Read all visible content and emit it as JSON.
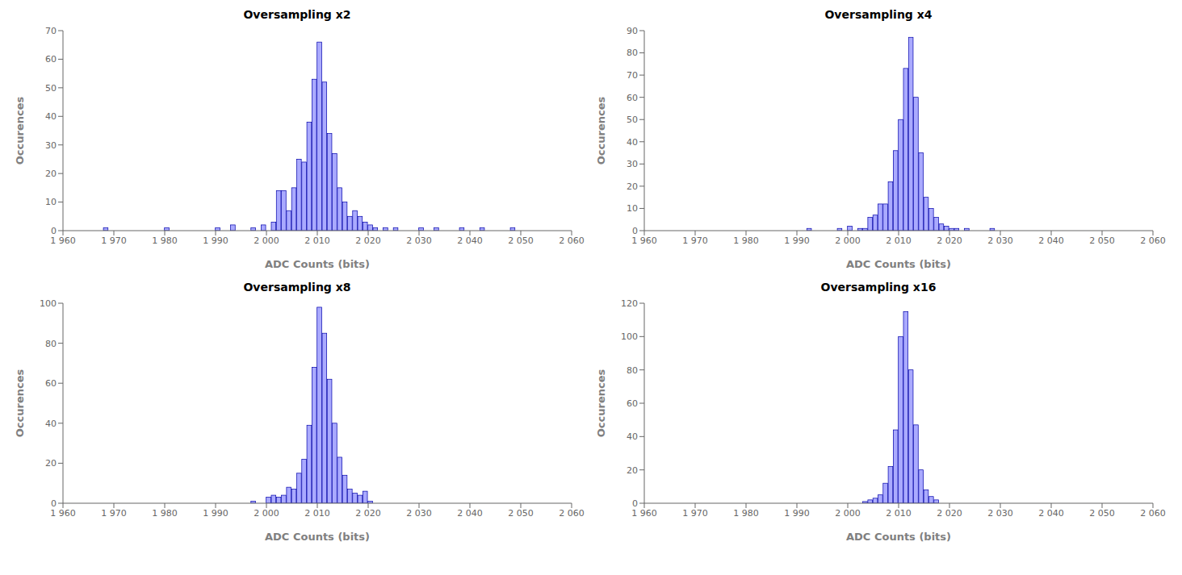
{
  "chart_data": [
    {
      "type": "bar",
      "title": "Oversampling x2",
      "xlabel": "ADC Counts (bits)",
      "ylabel": "Occurences",
      "color": "#aaaaff",
      "grid": false,
      "xlim": [
        1960,
        2060
      ],
      "xticks": [
        {
          "value": 1960,
          "label": "1 960"
        },
        {
          "value": 1970,
          "label": "1 970"
        },
        {
          "value": 1980,
          "label": "1 980"
        },
        {
          "value": 1990,
          "label": "1 990"
        },
        {
          "value": 2000,
          "label": "2 000"
        },
        {
          "value": 2010,
          "label": "2 010"
        },
        {
          "value": 2020,
          "label": "2 020"
        },
        {
          "value": 2030,
          "label": "2 030"
        },
        {
          "value": 2040,
          "label": "2 040"
        },
        {
          "value": 2050,
          "label": "2 050"
        },
        {
          "value": 2060,
          "label": "2 060"
        }
      ],
      "ylim": [
        0,
        70
      ],
      "yticks": [
        0,
        10,
        20,
        30,
        40,
        50,
        60,
        70
      ],
      "x": [
        1968,
        1980,
        1990,
        1993,
        1997,
        1999,
        2001,
        2002,
        2003,
        2004,
        2005,
        2006,
        2007,
        2008,
        2009,
        2010,
        2011,
        2012,
        2013,
        2014,
        2015,
        2016,
        2017,
        2018,
        2019,
        2020,
        2021,
        2023,
        2025,
        2030,
        2033,
        2038,
        2042,
        2048
      ],
      "values": [
        1,
        1,
        1,
        2,
        1,
        2,
        3,
        14,
        14,
        7,
        15,
        25,
        24,
        38,
        53,
        66,
        52,
        34,
        27,
        15,
        10,
        5,
        7,
        5,
        3,
        2,
        1,
        1,
        1,
        1,
        1,
        1,
        1,
        1
      ]
    },
    {
      "type": "bar",
      "title": "Oversampling x4",
      "xlabel": "ADC Counts (bits)",
      "ylabel": "Occurences",
      "color": "#aaaaff",
      "grid": false,
      "xlim": [
        1960,
        2060
      ],
      "xticks": [
        {
          "value": 1960,
          "label": "1 960"
        },
        {
          "value": 1970,
          "label": "1 970"
        },
        {
          "value": 1980,
          "label": "1 980"
        },
        {
          "value": 1990,
          "label": "1 990"
        },
        {
          "value": 2000,
          "label": "2 000"
        },
        {
          "value": 2010,
          "label": "2 010"
        },
        {
          "value": 2020,
          "label": "2 020"
        },
        {
          "value": 2030,
          "label": "2 030"
        },
        {
          "value": 2040,
          "label": "2 040"
        },
        {
          "value": 2050,
          "label": "2 050"
        },
        {
          "value": 2060,
          "label": "2 060"
        }
      ],
      "ylim": [
        0,
        90
      ],
      "yticks": [
        0,
        10,
        20,
        30,
        40,
        50,
        60,
        70,
        80,
        90
      ],
      "x": [
        1992,
        1998,
        2000,
        2002,
        2003,
        2004,
        2005,
        2006,
        2007,
        2008,
        2009,
        2010,
        2011,
        2012,
        2013,
        2014,
        2015,
        2016,
        2017,
        2018,
        2019,
        2020,
        2021,
        2023,
        2028
      ],
      "values": [
        1,
        1,
        2,
        1,
        1,
        6,
        7,
        12,
        12,
        22,
        36,
        50,
        73,
        87,
        60,
        35,
        15,
        10,
        6,
        3,
        2,
        1,
        1,
        1,
        1
      ]
    },
    {
      "type": "bar",
      "title": "Oversampling x8",
      "xlabel": "ADC Counts (bits)",
      "ylabel": "Occurences",
      "color": "#aaaaff",
      "grid": false,
      "xlim": [
        1960,
        2060
      ],
      "xticks": [
        {
          "value": 1960,
          "label": "1 960"
        },
        {
          "value": 1970,
          "label": "1 970"
        },
        {
          "value": 1980,
          "label": "1 980"
        },
        {
          "value": 1990,
          "label": "1 990"
        },
        {
          "value": 2000,
          "label": "2 000"
        },
        {
          "value": 2010,
          "label": "2 010"
        },
        {
          "value": 2020,
          "label": "2 020"
        },
        {
          "value": 2030,
          "label": "2 030"
        },
        {
          "value": 2040,
          "label": "2 040"
        },
        {
          "value": 2050,
          "label": "2 050"
        },
        {
          "value": 2060,
          "label": "2 060"
        }
      ],
      "ylim": [
        0,
        100
      ],
      "yticks": [
        0,
        20,
        40,
        60,
        80,
        100
      ],
      "x": [
        1997,
        2000,
        2001,
        2002,
        2003,
        2004,
        2005,
        2006,
        2007,
        2008,
        2009,
        2010,
        2011,
        2012,
        2013,
        2014,
        2015,
        2016,
        2017,
        2018,
        2019,
        2020
      ],
      "values": [
        1,
        3,
        4,
        3,
        4,
        8,
        7,
        15,
        22,
        39,
        68,
        98,
        85,
        62,
        40,
        23,
        14,
        7,
        5,
        4,
        6,
        1
      ]
    },
    {
      "type": "bar",
      "title": "Oversampling x16",
      "xlabel": "ADC Counts (bits)",
      "ylabel": "Occurences",
      "color": "#aaaaff",
      "grid": false,
      "xlim": [
        1960,
        2060
      ],
      "xticks": [
        {
          "value": 1960,
          "label": "1 960"
        },
        {
          "value": 1970,
          "label": "1 970"
        },
        {
          "value": 1980,
          "label": "1 980"
        },
        {
          "value": 1990,
          "label": "1 990"
        },
        {
          "value": 2000,
          "label": "2 000"
        },
        {
          "value": 2010,
          "label": "2 010"
        },
        {
          "value": 2020,
          "label": "2 020"
        },
        {
          "value": 2030,
          "label": "2 030"
        },
        {
          "value": 2040,
          "label": "2 040"
        },
        {
          "value": 2050,
          "label": "2 050"
        },
        {
          "value": 2060,
          "label": "2 060"
        }
      ],
      "ylim": [
        0,
        120
      ],
      "yticks": [
        0,
        20,
        40,
        60,
        80,
        100,
        120
      ],
      "x": [
        2003,
        2004,
        2005,
        2006,
        2007,
        2008,
        2009,
        2010,
        2011,
        2012,
        2013,
        2014,
        2015,
        2016,
        2017
      ],
      "values": [
        1,
        2,
        3,
        5,
        12,
        22,
        44,
        100,
        115,
        80,
        47,
        20,
        8,
        4,
        2
      ]
    }
  ]
}
